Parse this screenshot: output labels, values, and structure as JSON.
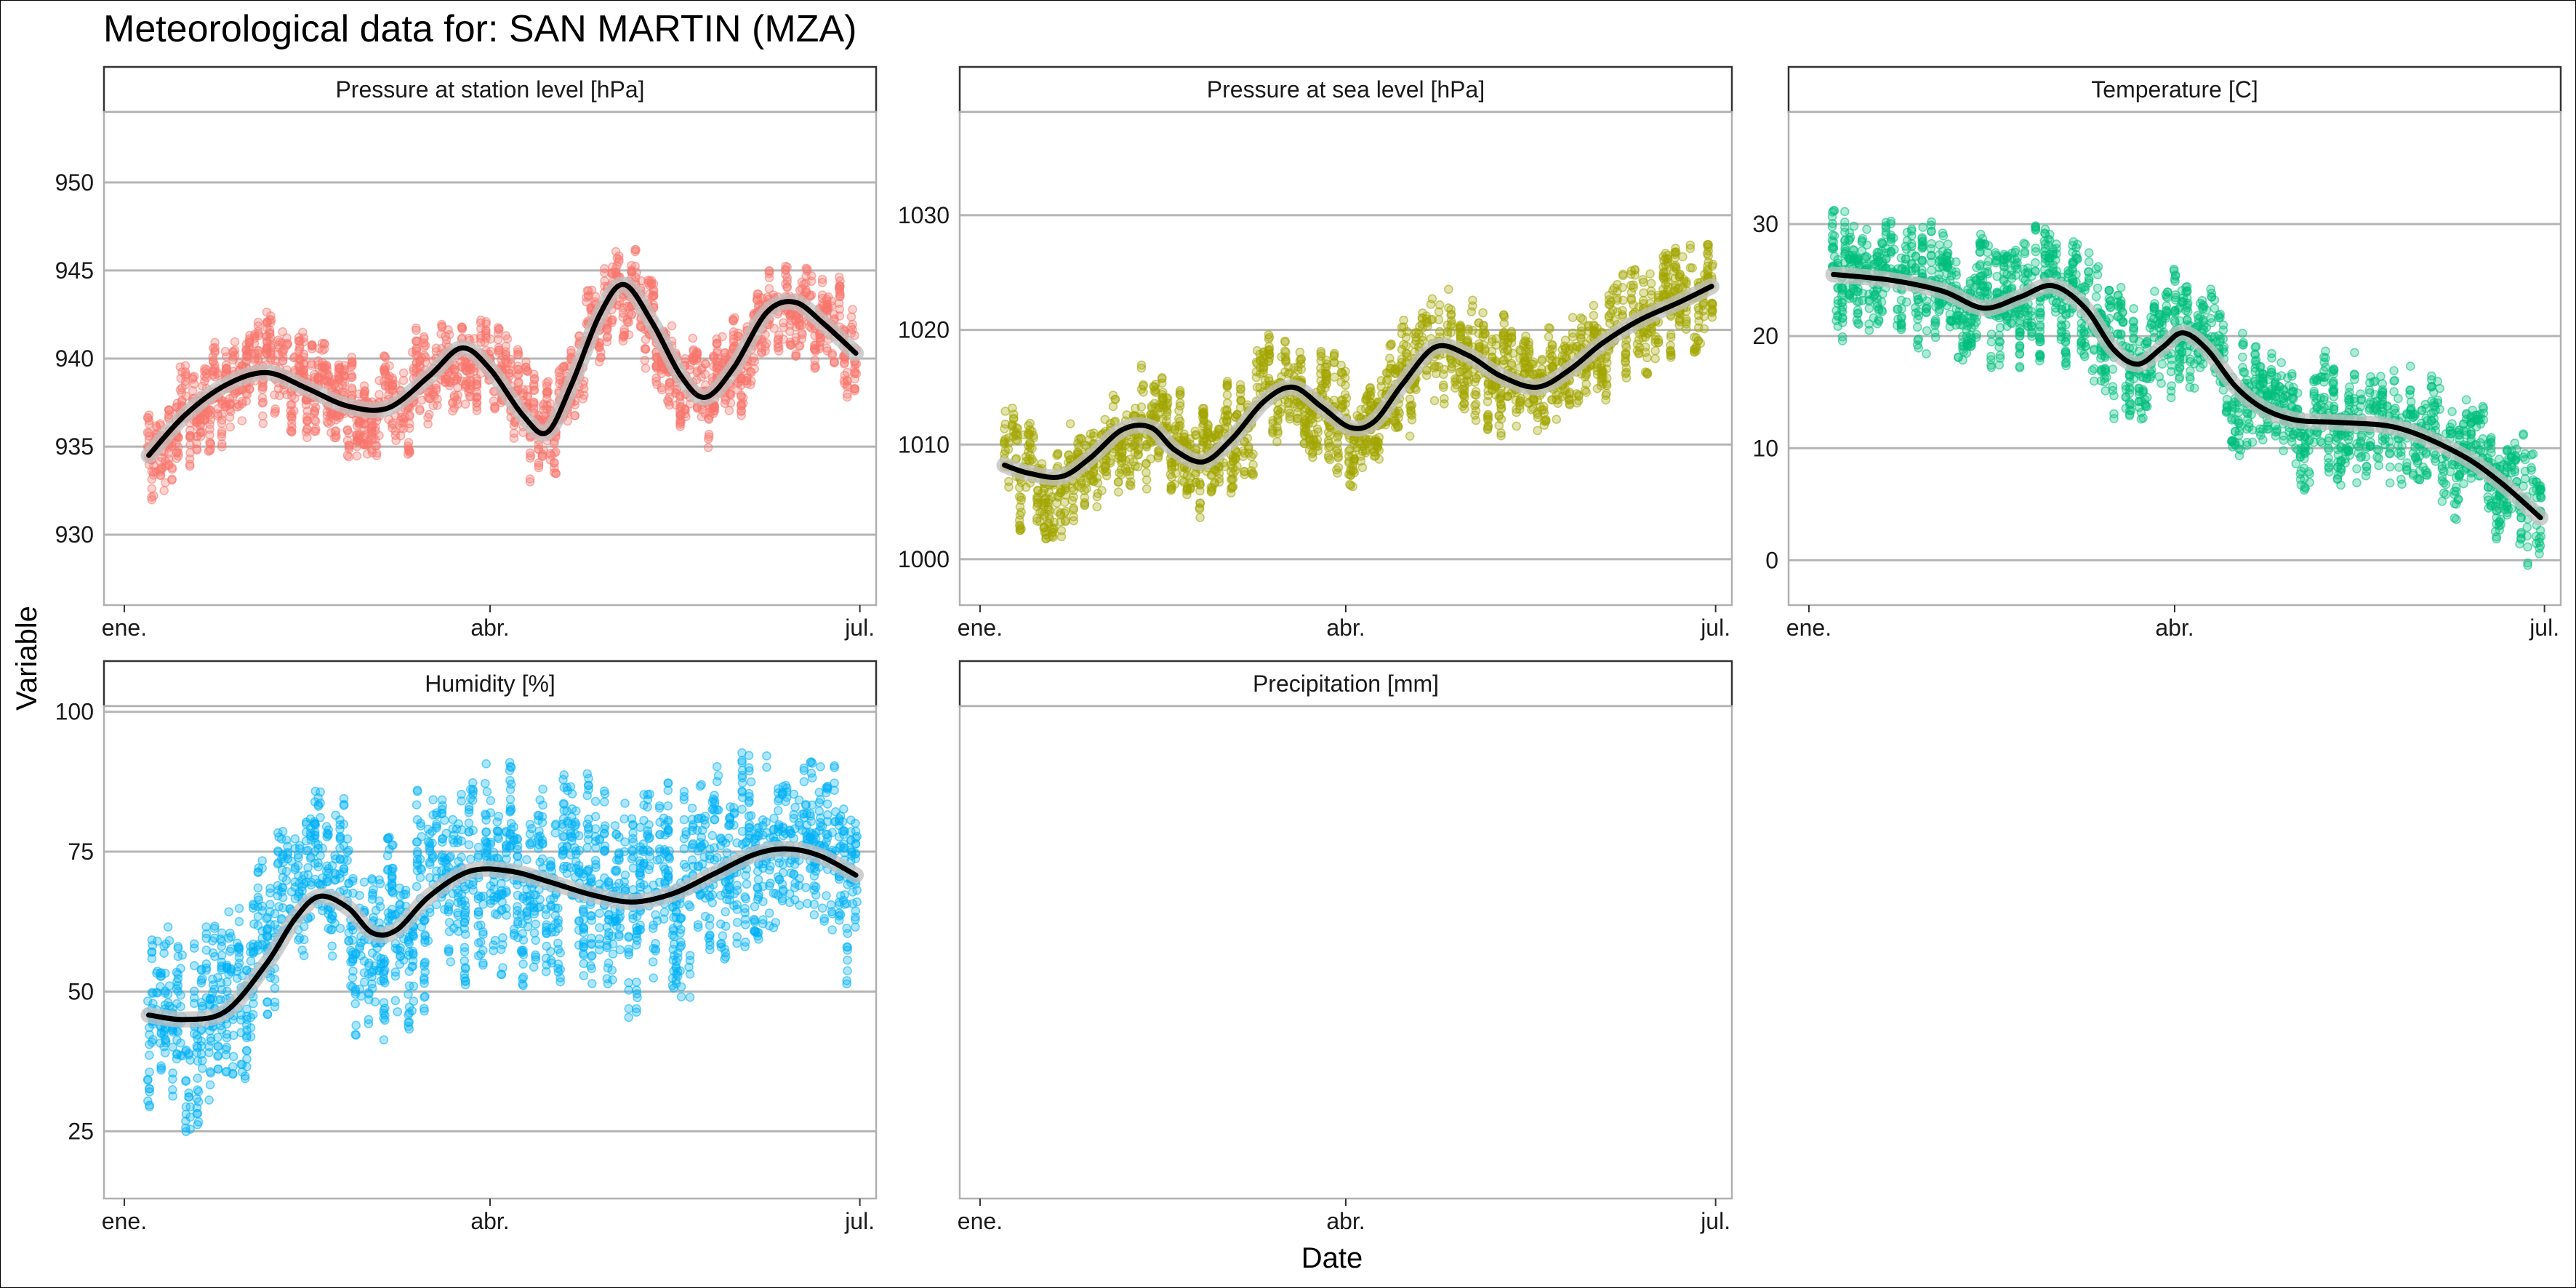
{
  "title": "Meteorological data for: SAN MARTIN (MZA)",
  "colors": {
    "pressure_station": "#F8766D",
    "pressure_sea": "#A3A500",
    "temperature": "#00BF7D",
    "humidity": "#00B0F6",
    "smooth": "#000000"
  },
  "chart_data": {
    "type": "scatter",
    "xlabel": "Date",
    "ylabel": "Variable",
    "x_ticks": [
      "ene.",
      "abr.",
      "jul."
    ],
    "x_tick_days": [
      0,
      90,
      181
    ],
    "xlim_days": [
      -5,
      185
    ],
    "grid": true,
    "panels": [
      {
        "title": "Pressure at station level [hPa]",
        "color_key": "pressure_station",
        "ylim": [
          926,
          954
        ],
        "yticks": [
          930,
          935,
          940,
          945,
          950
        ],
        "smooth": [
          [
            6,
            934.5
          ],
          [
            15,
            936.8
          ],
          [
            25,
            938.5
          ],
          [
            35,
            939.2
          ],
          [
            45,
            938.3
          ],
          [
            55,
            937.3
          ],
          [
            65,
            937.2
          ],
          [
            75,
            939.0
          ],
          [
            83,
            940.6
          ],
          [
            90,
            939.4
          ],
          [
            98,
            936.8
          ],
          [
            104,
            935.8
          ],
          [
            110,
            938.5
          ],
          [
            117,
            942.5
          ],
          [
            123,
            944.2
          ],
          [
            130,
            942.0
          ],
          [
            137,
            939.0
          ],
          [
            143,
            937.8
          ],
          [
            150,
            939.5
          ],
          [
            158,
            942.6
          ],
          [
            165,
            943.2
          ],
          [
            172,
            942.0
          ],
          [
            180,
            940.3
          ]
        ]
      },
      {
        "title": "Pressure at sea level [hPa]",
        "color_key": "pressure_sea",
        "ylim": [
          996,
          1039
        ],
        "yticks": [
          1000,
          1010,
          1020,
          1030
        ],
        "smooth": [
          [
            6,
            1008.2
          ],
          [
            12,
            1007.5
          ],
          [
            20,
            1007.2
          ],
          [
            27,
            1008.8
          ],
          [
            35,
            1011.3
          ],
          [
            42,
            1011.5
          ],
          [
            48,
            1009.5
          ],
          [
            55,
            1008.5
          ],
          [
            62,
            1010.5
          ],
          [
            70,
            1013.8
          ],
          [
            77,
            1015.0
          ],
          [
            84,
            1013.3
          ],
          [
            91,
            1011.5
          ],
          [
            97,
            1012.0
          ],
          [
            104,
            1015.3
          ],
          [
            112,
            1018.5
          ],
          [
            120,
            1017.8
          ],
          [
            128,
            1016.0
          ],
          [
            137,
            1015.0
          ],
          [
            145,
            1016.5
          ],
          [
            153,
            1018.8
          ],
          [
            162,
            1020.8
          ],
          [
            172,
            1022.4
          ],
          [
            180,
            1023.8
          ]
        ]
      },
      {
        "title": "Temperature [C]",
        "color_key": "temperature",
        "ylim": [
          -4,
          40
        ],
        "yticks": [
          0,
          10,
          20,
          30
        ],
        "smooth": [
          [
            6,
            25.5
          ],
          [
            20,
            25.0
          ],
          [
            33,
            24.0
          ],
          [
            43,
            22.5
          ],
          [
            52,
            23.5
          ],
          [
            60,
            24.5
          ],
          [
            68,
            22.5
          ],
          [
            75,
            18.8
          ],
          [
            81,
            17.5
          ],
          [
            87,
            19.0
          ],
          [
            92,
            20.3
          ],
          [
            98,
            18.8
          ],
          [
            105,
            15.5
          ],
          [
            112,
            13.5
          ],
          [
            120,
            12.5
          ],
          [
            130,
            12.3
          ],
          [
            145,
            11.8
          ],
          [
            160,
            9.5
          ],
          [
            170,
            7.0
          ],
          [
            180,
            3.8
          ]
        ]
      },
      {
        "title": "Humidity [%]",
        "color_key": "humidity",
        "ylim": [
          13,
          101
        ],
        "yticks": [
          25,
          50,
          75,
          100
        ],
        "smooth": [
          [
            6,
            45.8
          ],
          [
            15,
            45.0
          ],
          [
            25,
            46.5
          ],
          [
            35,
            55.0
          ],
          [
            42,
            63.0
          ],
          [
            48,
            67.0
          ],
          [
            55,
            65.0
          ],
          [
            61,
            60.5
          ],
          [
            67,
            61.0
          ],
          [
            75,
            67.0
          ],
          [
            85,
            71.5
          ],
          [
            95,
            71.5
          ],
          [
            105,
            69.5
          ],
          [
            115,
            67.3
          ],
          [
            125,
            66.0
          ],
          [
            135,
            67.5
          ],
          [
            145,
            71.0
          ],
          [
            155,
            74.5
          ],
          [
            163,
            75.5
          ],
          [
            171,
            74.3
          ],
          [
            180,
            70.8
          ]
        ]
      },
      {
        "title": "Precipitation [mm]",
        "color_key": "humidity",
        "ylim": [
          0,
          1
        ],
        "yticks": [],
        "smooth": []
      }
    ]
  }
}
